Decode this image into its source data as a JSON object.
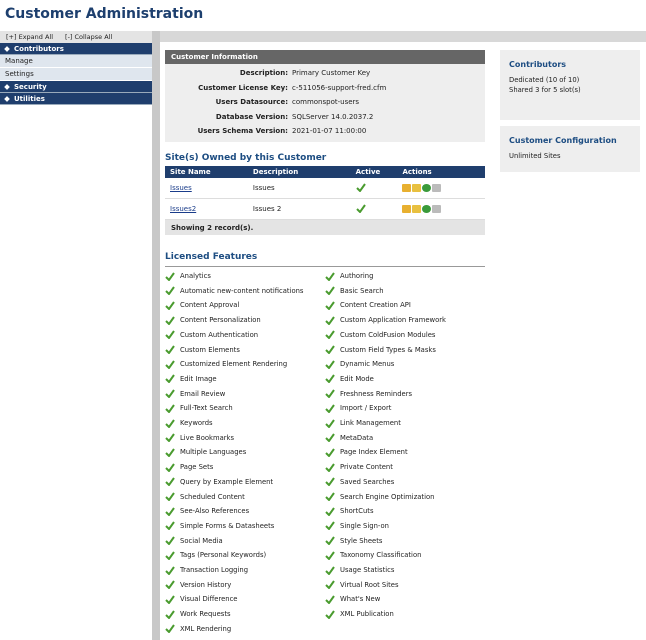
{
  "header": {
    "title": "Customer Administration"
  },
  "sidebar": {
    "expand": "[+] Expand All",
    "collapse": "[-] Collapse All",
    "contributors": "Contributors",
    "manage": "Manage",
    "settings": "Settings",
    "security": "Security",
    "utilities": "Utilities"
  },
  "customer_info": {
    "title": "Customer Information",
    "rows": [
      [
        "Description:",
        "Primary Customer Key"
      ],
      [
        "Customer License Key:",
        "c-511056-support-fred.cfm"
      ],
      [
        "Users Datasource:",
        "commonspot-users"
      ],
      [
        "Database Version:",
        "SQLServer 14.0.2037.2"
      ],
      [
        "Users Schema Version:",
        "2021-01-07 11:00:00"
      ]
    ]
  },
  "sites": {
    "title": "Site(s) Owned by this Customer",
    "columns": [
      "Site Name",
      "Description",
      "Active",
      "Actions"
    ],
    "rows": [
      [
        "Issues",
        "Issues"
      ],
      [
        "Issues2",
        "Issues 2"
      ]
    ],
    "footer": "Showing 2 record(s)."
  },
  "features": {
    "title": "Licensed Features",
    "left": [
      "Analytics",
      "Automatic new-content notifications",
      "Content Approval",
      "Content Personalization",
      "Custom Authentication",
      "Custom Elements",
      "Customized Element Rendering",
      "Edit Image",
      "Email Review",
      "Full-Text Search",
      "Keywords",
      "Live Bookmarks",
      "Multiple Languages",
      "Page Sets",
      "Query by Example Element",
      "Scheduled Content",
      "See-Also References",
      "Simple Forms & Datasheets",
      "Social Media",
      "Tags (Personal Keywords)",
      "Transaction Logging",
      "Version History",
      "Visual Difference",
      "Work Requests",
      "XML Rendering"
    ],
    "right": [
      "Authoring",
      "Basic Search",
      "Content Creation API",
      "Custom Application Framework",
      "Custom ColdFusion Modules",
      "Custom Field Types & Masks",
      "Dynamic Menus",
      "Edit Mode",
      "Freshness Reminders",
      "Import / Export",
      "Link Management",
      "MetaData",
      "Page Index Element",
      "Private Content",
      "Saved Searches",
      "Search Engine Optimization",
      "ShortCuts",
      "Single Sign-on",
      "Style Sheets",
      "Taxonomy Classification",
      "Usage Statistics",
      "Virtual Root Sites",
      "What's New",
      "XML Publication"
    ]
  },
  "contributors": {
    "title": "Contributors",
    "lines": [
      "Dedicated (10 of 10)",
      "Shared 3 for 5 slot(s)"
    ]
  },
  "config": {
    "title": "Customer Configuration",
    "lines": [
      "Unlimited Sites"
    ]
  }
}
